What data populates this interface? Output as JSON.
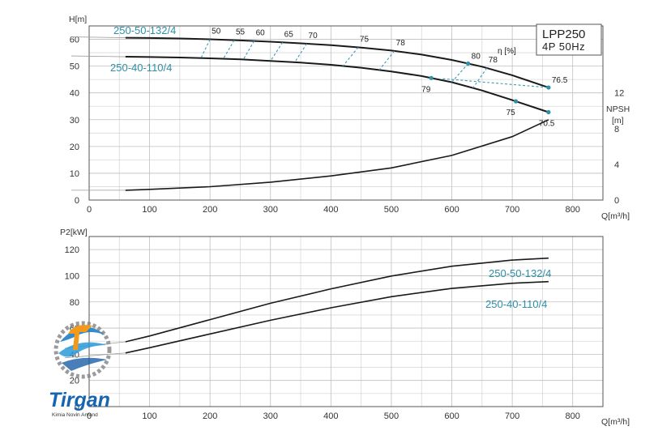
{
  "chart_data": [
    {
      "type": "line",
      "title": "",
      "xlabel": "Q[m³/h]",
      "ylabel": "H[m]",
      "xlim": [
        0,
        850
      ],
      "ylim": [
        0,
        65
      ],
      "x_ticks": [
        "0",
        "100",
        "200",
        "300",
        "400",
        "500",
        "600",
        "700",
        "800"
      ],
      "y_ticks": [
        "0",
        "10",
        "20",
        "30",
        "40",
        "50",
        "60"
      ],
      "grid": true,
      "legend_box": {
        "line1": "LPP250",
        "line2": "4P  50Hz"
      },
      "eta_label": "η [%]",
      "series": [
        {
          "name": "250-50-132/4",
          "x": [
            60,
            100,
            150,
            200,
            250,
            300,
            350,
            400,
            450,
            500,
            550,
            600,
            650,
            700,
            760
          ],
          "y": [
            60.6,
            60.5,
            60.3,
            60.0,
            59.6,
            59.1,
            58.5,
            57.8,
            56.9,
            55.8,
            54.3,
            52.3,
            49.8,
            46.6,
            42.0
          ]
        },
        {
          "name": "250-40-110/4",
          "x": [
            60,
            100,
            150,
            200,
            250,
            300,
            350,
            400,
            450,
            500,
            550,
            600,
            650,
            700,
            760
          ],
          "y": [
            53.5,
            53.4,
            53.2,
            52.9,
            52.5,
            51.9,
            51.3,
            50.5,
            49.4,
            48.0,
            46.3,
            44.0,
            40.9,
            37.3,
            32.8
          ]
        },
        {
          "name": "NPSH [m]",
          "axis": "NPSH",
          "ylim": [
            0,
            19.5
          ],
          "y_ticks": [
            "0",
            "4",
            "8",
            "12"
          ],
          "x": [
            60,
            100,
            200,
            300,
            400,
            500,
            600,
            700,
            760
          ],
          "y": [
            1.1,
            1.2,
            1.5,
            2.0,
            2.7,
            3.6,
            5.0,
            7.1,
            9.0
          ]
        }
      ],
      "efficiency_lines": [
        {
          "label": "50",
          "q_upper": 200,
          "q_lower": 185
        },
        {
          "label": "55",
          "q_upper": 240,
          "q_lower": 222
        },
        {
          "label": "60",
          "q_upper": 273,
          "q_lower": 255
        },
        {
          "label": "65",
          "q_upper": 320,
          "q_lower": 300
        },
        {
          "label": "70",
          "q_upper": 360,
          "q_lower": 340
        },
        {
          "label": "75",
          "q_upper": 445,
          "q_lower": 420
        },
        {
          "label": "78",
          "q_upper": 505,
          "q_lower": 480
        },
        {
          "label": "80",
          "q_upper": 627
        },
        {
          "label": "79",
          "q_lower": 566
        },
        {
          "label": "78",
          "q_upper": 658,
          "q_lower": 635
        },
        {
          "label": "76.5",
          "q_upper": 760
        },
        {
          "label": "75",
          "q_lower": 706
        },
        {
          "label": "70.5",
          "q_lower": 760
        }
      ]
    },
    {
      "type": "line",
      "title": "",
      "xlabel": "Q[m³/h]",
      "ylabel": "P2[kW]",
      "xlim": [
        0,
        850
      ],
      "ylim": [
        0,
        130
      ],
      "x_ticks": [
        "0",
        "100",
        "200",
        "300",
        "400",
        "500",
        "600",
        "700",
        "800"
      ],
      "y_ticks": [
        "0",
        "20",
        "40",
        "60",
        "80",
        "100",
        "120"
      ],
      "grid": true,
      "series": [
        {
          "name": "250-50-132/4",
          "x": [
            60,
            100,
            200,
            300,
            400,
            500,
            600,
            700,
            760
          ],
          "y": [
            49.5,
            54.0,
            66.5,
            79.0,
            90.0,
            99.8,
            107.3,
            112.0,
            113.5
          ]
        },
        {
          "name": "250-40-110/4",
          "x": [
            60,
            100,
            200,
            300,
            400,
            500,
            600,
            700,
            760
          ],
          "y": [
            41.0,
            45.0,
            55.5,
            66.0,
            75.5,
            84.0,
            90.3,
            94.3,
            95.5
          ]
        }
      ]
    }
  ],
  "logo": {
    "name": "Tirgan",
    "subtitle": "Kimia Novin Arvand"
  }
}
